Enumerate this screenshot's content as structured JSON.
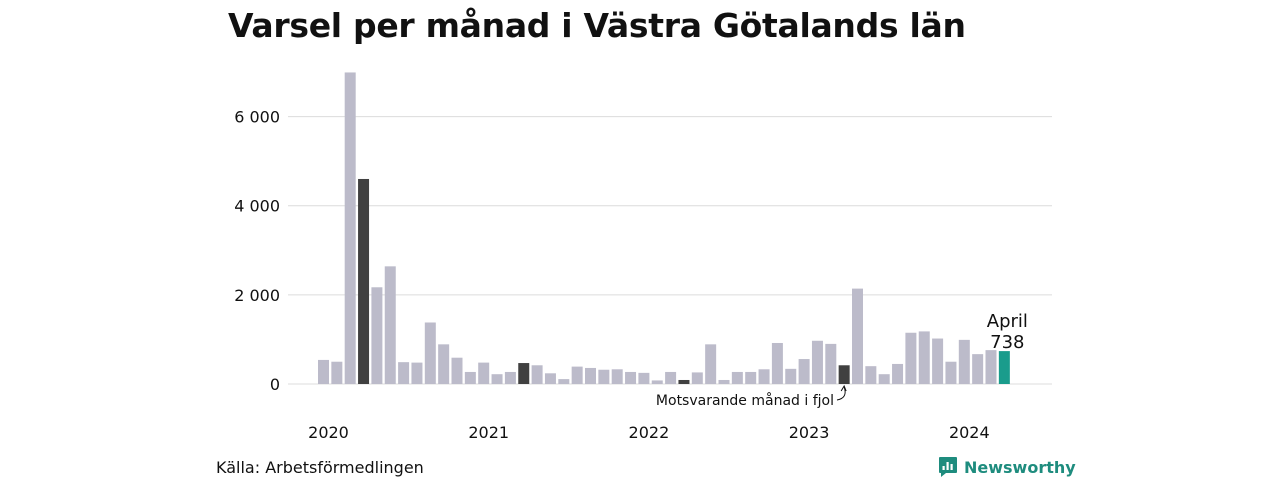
{
  "title": "Varsel per månad i Västra Götalands län",
  "source": "Källa: Arbetsförmedlingen",
  "brand": {
    "name": "Newsworthy",
    "icon": "newsworthy-logo-icon"
  },
  "colors": {
    "bar": "#bcbbca",
    "same_month": "#404040",
    "current": "#1a9c8c",
    "grid": "#dcdcdc",
    "brand": "#1e8c7e"
  },
  "chart_data": {
    "type": "bar",
    "title": "Varsel per månad i Västra Götalands län",
    "xlabel": "",
    "ylabel": "",
    "ylim": [
      0,
      7000
    ],
    "y_ticks": [
      0,
      2000,
      4000,
      6000
    ],
    "y_tick_labels": [
      "0",
      "2 000",
      "4 000",
      "6 000"
    ],
    "x_tick_labels": [
      "2020",
      "2021",
      "2022",
      "2023",
      "2024"
    ],
    "grid": true,
    "categories": [
      "2020-01",
      "2020-02",
      "2020-03",
      "2020-04",
      "2020-05",
      "2020-06",
      "2020-07",
      "2020-08",
      "2020-09",
      "2020-10",
      "2020-11",
      "2020-12",
      "2021-01",
      "2021-02",
      "2021-03",
      "2021-04",
      "2021-05",
      "2021-06",
      "2021-07",
      "2021-08",
      "2021-09",
      "2021-10",
      "2021-11",
      "2021-12",
      "2022-01",
      "2022-02",
      "2022-03",
      "2022-04",
      "2022-05",
      "2022-06",
      "2022-07",
      "2022-08",
      "2022-09",
      "2022-10",
      "2022-11",
      "2022-12",
      "2023-01",
      "2023-02",
      "2023-03",
      "2023-04",
      "2023-05",
      "2023-06",
      "2023-07",
      "2023-08",
      "2023-09",
      "2023-10",
      "2023-11",
      "2023-12",
      "2024-01",
      "2024-02",
      "2024-03",
      "2024-04"
    ],
    "values": [
      540,
      500,
      6990,
      4600,
      2170,
      2640,
      490,
      480,
      1380,
      890,
      590,
      270,
      480,
      220,
      270,
      470,
      420,
      240,
      110,
      390,
      360,
      320,
      330,
      270,
      250,
      80,
      270,
      90,
      260,
      890,
      90,
      270,
      270,
      330,
      920,
      340,
      560,
      970,
      900,
      420,
      2140,
      400,
      220,
      450,
      1150,
      1180,
      1020,
      500,
      990,
      670,
      760,
      738
    ],
    "highlight_same_month": [
      "2020-04",
      "2021-04",
      "2022-04",
      "2023-04"
    ],
    "highlight_current": "2024-04",
    "annotations": {
      "current_month_label": "April",
      "current_value_label": "738",
      "same_month_label": "Motsvarande månad i fjol"
    }
  }
}
